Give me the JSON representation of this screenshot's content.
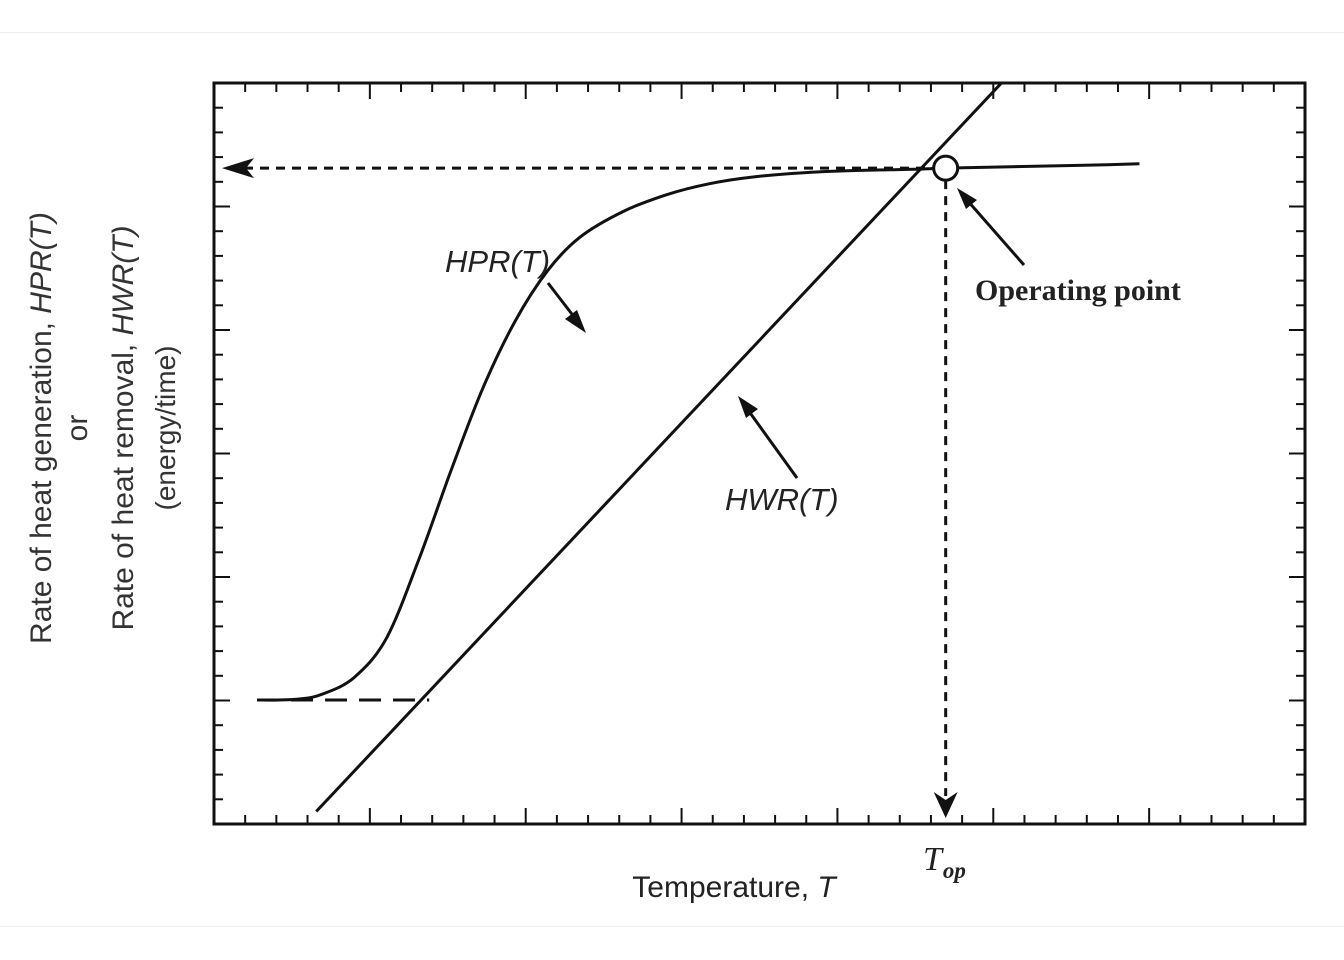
{
  "chart_data": {
    "type": "line",
    "xlabel": "Temperature, T",
    "xlabel_parts": {
      "text": "Temperature, ",
      "var": "T"
    },
    "ylabel_lines": [
      {
        "text": "Rate of heat generation, ",
        "var": "HPR(T)"
      },
      {
        "text": "or",
        "var": ""
      },
      {
        "text": "Rate of heat removal, ",
        "var": "HWR(T)"
      },
      {
        "text": "(energy/time)",
        "var": ""
      }
    ],
    "xlim": [
      0,
      10
    ],
    "ylim": [
      -1,
      5
    ],
    "grid": false,
    "x_tick_labels": [
      {
        "x": 6.8,
        "main": "T",
        "sub": "op"
      }
    ],
    "series": [
      {
        "name": "HPR(T)",
        "x": [
          0.4,
          0.6,
          0.8,
          1.0,
          1.3,
          1.6,
          1.9,
          2.2,
          2.5,
          2.8,
          3.1,
          3.4,
          3.8,
          4.2,
          4.6,
          5.0,
          5.5,
          6.0,
          6.5,
          6.8,
          7.3,
          7.8,
          8.3,
          8.6
        ],
        "y": [
          0.0,
          0.0,
          0.01,
          0.05,
          0.2,
          0.55,
          1.25,
          2.05,
          2.8,
          3.4,
          3.85,
          4.15,
          4.38,
          4.53,
          4.63,
          4.69,
          4.73,
          4.75,
          4.76,
          4.77,
          4.78,
          4.79,
          4.8,
          4.81
        ]
      },
      {
        "name": "HWR(T)",
        "x": [
          0.95,
          7.5
        ],
        "y": [
          -1.0,
          5.72
        ]
      }
    ],
    "baseline": {
      "y": 0.0,
      "x_from": 0.4,
      "x_to": 2.0,
      "style": "dashed"
    },
    "operating_point": {
      "x": 6.8,
      "y": 4.77
    },
    "annotations": [
      {
        "text": "HPR(T)",
        "style": "italic-sans"
      },
      {
        "text": "HWR(T)",
        "style": "italic-sans"
      },
      {
        "text": "Operating point",
        "style": "bold-serif"
      }
    ]
  }
}
